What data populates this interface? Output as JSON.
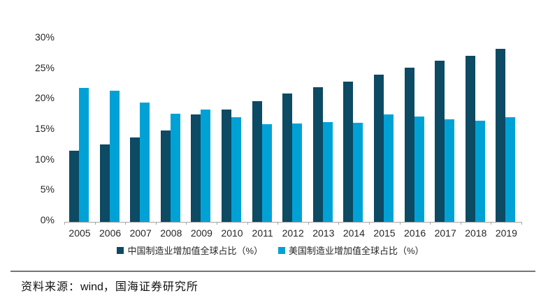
{
  "chart_data": {
    "type": "bar",
    "title": "",
    "xlabel": "",
    "ylabel": "",
    "categories": [
      "2005",
      "2006",
      "2007",
      "2008",
      "2009",
      "2010",
      "2011",
      "2012",
      "2013",
      "2014",
      "2015",
      "2016",
      "2017",
      "2018",
      "2019"
    ],
    "series": [
      {
        "name": "中国制造业增加值全球占比（%）",
        "color": "#0d4a63",
        "values": [
          11.7,
          12.7,
          13.9,
          15.0,
          17.6,
          18.4,
          19.8,
          21.1,
          22.1,
          23.0,
          24.2,
          25.3,
          26.5,
          27.2,
          28.4
        ]
      },
      {
        "name": "美国制造业增加值全球占比（%）",
        "color": "#00a2d6",
        "values": [
          22.0,
          21.5,
          19.6,
          17.8,
          18.4,
          17.2,
          16.0,
          16.2,
          16.4,
          16.3,
          17.6,
          17.3,
          16.8,
          16.6,
          17.2
        ]
      }
    ],
    "ylim": [
      0,
      30
    ],
    "yticks": [
      {
        "value": 0,
        "label": "0%"
      },
      {
        "value": 5,
        "label": "5%"
      },
      {
        "value": 10,
        "label": "10%"
      },
      {
        "value": 15,
        "label": "15%"
      },
      {
        "value": 20,
        "label": "20%"
      },
      {
        "value": 25,
        "label": "25%"
      },
      {
        "value": 30,
        "label": "30%"
      }
    ],
    "grid": false,
    "legend_position": "bottom",
    "axis_color": "#a6a6a6",
    "text_color": "#262626"
  },
  "source": {
    "label": "资料来源：",
    "provider": "wind",
    "suffix": "，国海证券研究所"
  }
}
